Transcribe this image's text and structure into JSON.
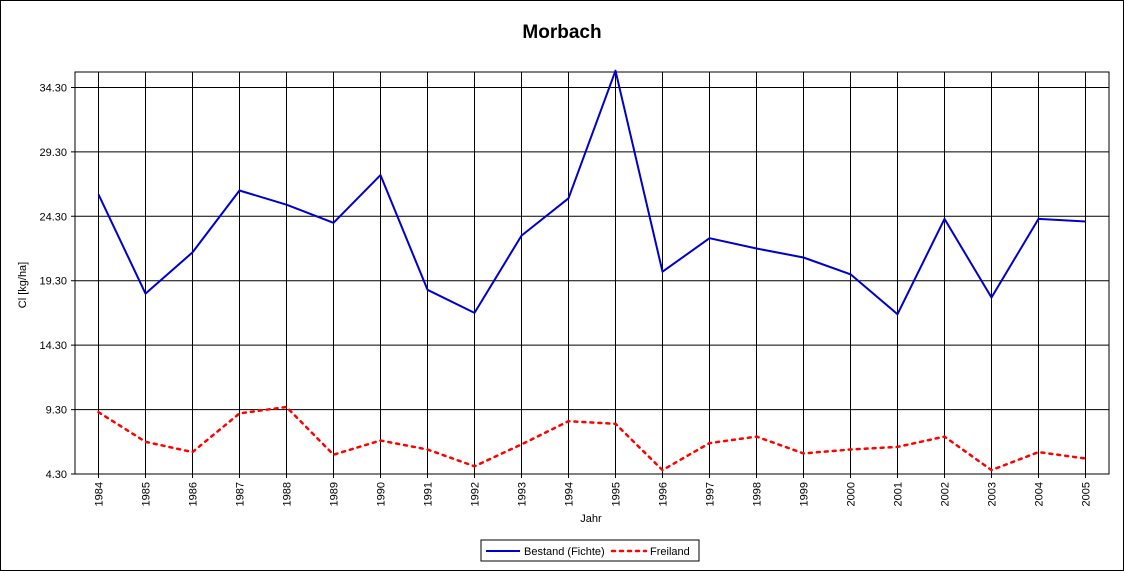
{
  "chart_data": {
    "type": "line",
    "title": "Morbach",
    "xlabel": "Jahr",
    "ylabel": "Cl [kg/ha]",
    "categories": [
      "1984",
      "1985",
      "1986",
      "1987",
      "1988",
      "1989",
      "1990",
      "1991",
      "1992",
      "1993",
      "1994",
      "1995",
      "1996",
      "1997",
      "1998",
      "1999",
      "2000",
      "2001",
      "2002",
      "2003",
      "2004",
      "2005"
    ],
    "y_ticks": [
      "4.30",
      "9.30",
      "14.30",
      "19.30",
      "24.30",
      "29.30",
      "34.30"
    ],
    "ylim": [
      4.3,
      35.5
    ],
    "grid": true,
    "legend_position": "bottom-center",
    "series": [
      {
        "name": "Bestand (Fichte)",
        "color": "#0000cc",
        "style": "solid",
        "values": [
          26.0,
          18.3,
          21.5,
          26.3,
          25.2,
          23.8,
          27.5,
          18.6,
          16.8,
          22.8,
          25.7,
          35.6,
          20.0,
          22.6,
          21.8,
          21.1,
          19.8,
          16.7,
          24.1,
          18.0,
          24.1,
          23.9
        ]
      },
      {
        "name": "Freiland",
        "color": "#ff0000",
        "style": "dotted",
        "values": [
          9.1,
          6.8,
          6.0,
          9.0,
          9.5,
          5.8,
          6.9,
          6.2,
          4.9,
          6.6,
          8.4,
          8.2,
          4.6,
          6.7,
          7.2,
          5.9,
          6.2,
          6.4,
          7.2,
          4.6,
          6.0,
          5.5
        ]
      }
    ]
  }
}
